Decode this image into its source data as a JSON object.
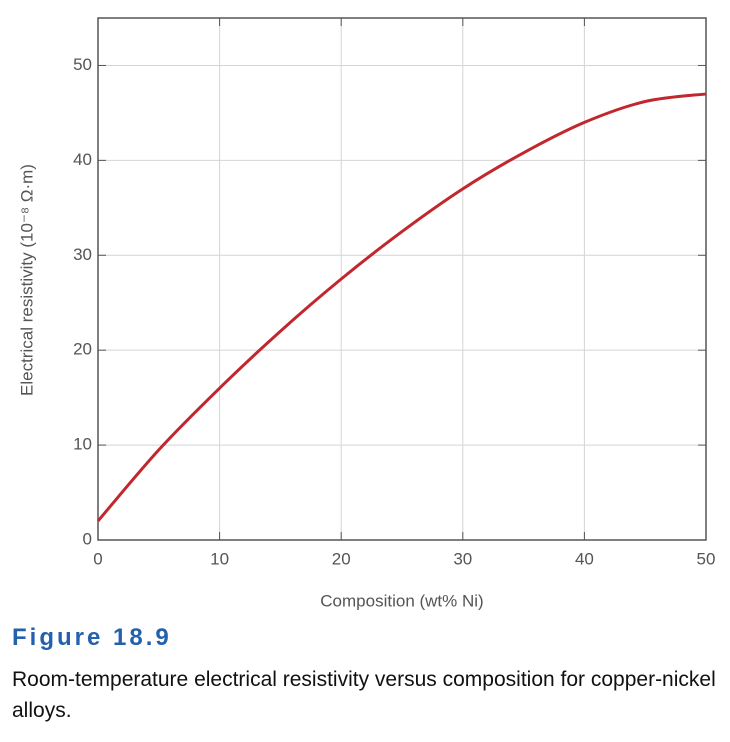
{
  "chart_data": {
    "type": "line",
    "ylabel": "Electrical resistivity (10⁻⁸ Ω·m)",
    "xlabel": "Composition (wt% Ni)",
    "x": [
      0,
      5,
      10,
      15,
      20,
      25,
      30,
      35,
      40,
      45,
      50
    ],
    "series": [
      {
        "name": "Cu-Ni resistivity",
        "color": "#c1272d",
        "values": [
          2,
          9.5,
          16,
          22,
          27.5,
          32.5,
          37,
          40.8,
          44,
          46.2,
          47
        ]
      }
    ],
    "xlim": [
      0,
      50
    ],
    "xticks": [
      0,
      10,
      20,
      30,
      40,
      50
    ],
    "ylim": [
      0,
      55
    ],
    "yticks": [
      0,
      10,
      20,
      30,
      40,
      50
    ],
    "grid": true
  },
  "caption": {
    "label": "Figure 18.9",
    "text": "Room-temperature electrical resistivity versus composition for copper-nickel alloys."
  }
}
